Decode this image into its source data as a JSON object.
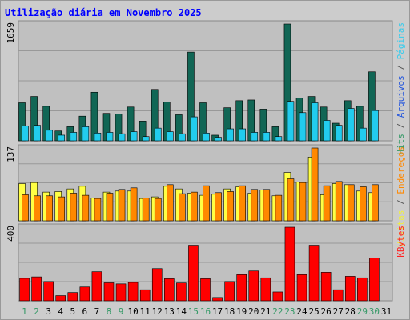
{
  "chart_data": {
    "type": "bar",
    "title": "Utilização diária em Novembro 2025",
    "categories": [
      "1",
      "2",
      "3",
      "4",
      "5",
      "6",
      "7",
      "8",
      "9",
      "10",
      "11",
      "12",
      "13",
      "14",
      "15",
      "16",
      "17",
      "18",
      "19",
      "20",
      "21",
      "22",
      "23",
      "24",
      "25",
      "26",
      "27",
      "28",
      "29",
      "30",
      "31"
    ],
    "weekend_days": [
      "1",
      "2",
      "8",
      "9",
      "15",
      "16",
      "22",
      "23",
      "29",
      "30"
    ],
    "panels": [
      {
        "id": "traffic",
        "ymax_label": "1659",
        "ymax": 1659,
        "ylabel_parts": [
          {
            "text": "Hits",
            "color": "#339966"
          },
          {
            "text": " / ",
            "color": "#555555"
          },
          {
            "text": "Arquivos",
            "color": "#2255dd"
          },
          {
            "text": " / ",
            "color": "#555555"
          },
          {
            "text": "Páginas",
            "color": "#33ccee"
          }
        ],
        "series": [
          {
            "name": "Hits",
            "color": "#116655",
            "values": [
              540,
              630,
              490,
              140,
              200,
              350,
              690,
              390,
              380,
              480,
              280,
              730,
              550,
              370,
              1260,
              540,
              80,
              470,
              570,
              580,
              450,
              200,
              1659,
              610,
              630,
              480,
              250,
              570,
              490,
              980,
              0
            ]
          },
          {
            "name": "Arquivos",
            "color": "#22ccee",
            "values": [
              210,
              220,
              150,
              80,
              120,
              200,
              110,
              120,
              100,
              130,
              60,
              180,
              130,
              100,
              340,
              110,
              50,
              170,
              170,
              120,
              120,
              60,
              560,
              400,
              540,
              290,
              220,
              460,
              180,
              430,
              0
            ]
          },
          {
            "name": "Páginas",
            "color": "#33ddff",
            "values": [
              0,
              0,
              0,
              0,
              0,
              0,
              0,
              0,
              0,
              0,
              0,
              0,
              0,
              0,
              0,
              0,
              0,
              0,
              0,
              0,
              0,
              0,
              0,
              0,
              0,
              0,
              0,
              0,
              0,
              0,
              0
            ]
          }
        ]
      },
      {
        "id": "visits",
        "ymax_label": "137",
        "ymax": 137,
        "ylabel_parts": [
          {
            "text": "Visitas",
            "color": "#eeee44"
          },
          {
            "text": " / ",
            "color": "#555555"
          },
          {
            "text": "Endereços",
            "color": "#ff8800"
          }
        ],
        "series": [
          {
            "name": "Visitas",
            "color": "#ffff44",
            "values": [
              70,
              72,
              54,
              55,
              60,
              65,
              43,
              54,
              56,
              56,
              42,
              45,
              65,
              60,
              52,
              48,
              50,
              60,
              64,
              52,
              58,
              47,
              91,
              73,
              120,
              49,
              70,
              68,
              56,
              53,
              0
            ]
          },
          {
            "name": "Endereços",
            "color": "#ff8800",
            "values": [
              49,
              47,
              47,
              45,
              52,
              48,
              42,
              52,
              59,
              62,
              43,
              42,
              68,
              51,
              54,
              66,
              53,
              55,
              66,
              59,
              59,
              48,
              79,
              72,
              137,
              66,
              74,
              68,
              64,
              68,
              0
            ]
          }
        ]
      },
      {
        "id": "kbytes",
        "ymax_label": "400",
        "ymax": 400,
        "ylabel_parts": [
          {
            "text": "KBytes",
            "color": "#ff2222"
          }
        ],
        "series": [
          {
            "name": "KBytes",
            "color": "#ff0000",
            "values": [
              122,
              130,
              105,
              28,
              45,
              75,
              158,
              98,
              92,
              100,
              60,
              175,
              120,
              97,
              302,
              120,
              18,
              105,
              142,
              162,
              125,
              48,
              400,
              142,
              302,
              155,
              60,
              133,
              125,
              233,
              0
            ]
          }
        ]
      }
    ],
    "colors": {
      "background": "#cccccc",
      "plot": "#c0c0c0",
      "title": "#0000ff",
      "weekday_label": "#000000",
      "weekend_label": "#339966",
      "gridline": "#999999"
    }
  }
}
